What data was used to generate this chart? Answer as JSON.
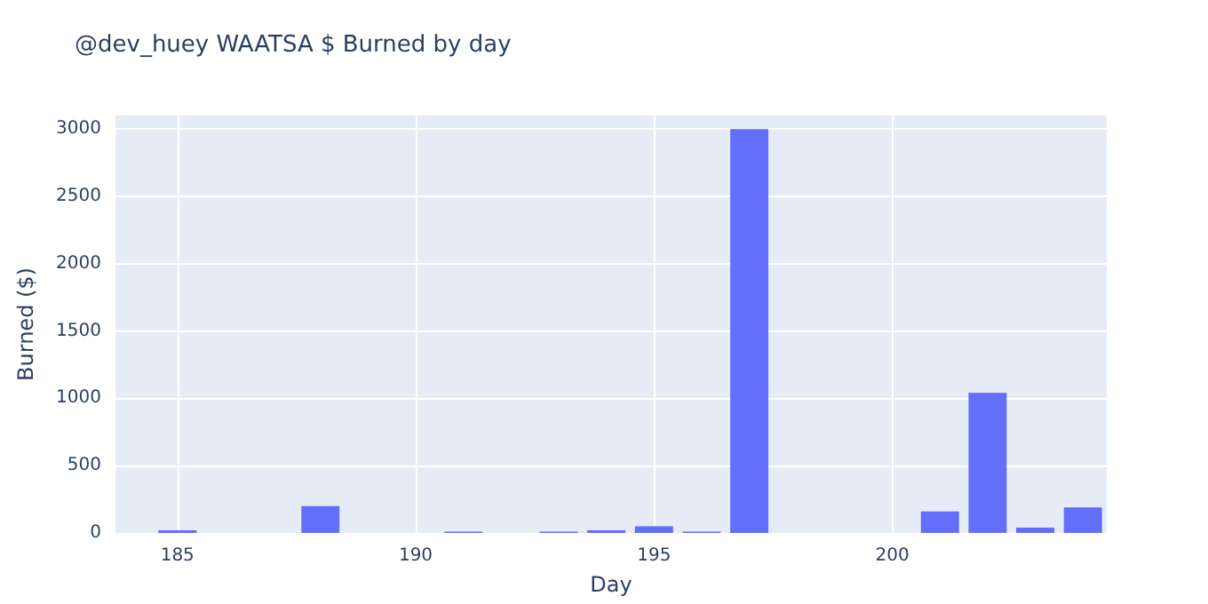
{
  "chart_data": {
    "type": "bar",
    "title": "@dev_huey WAATSA $ Burned by day",
    "xlabel": "Day",
    "ylabel": "Burned ($)",
    "x": [
      185,
      188,
      191,
      193,
      194,
      195,
      196,
      197,
      201,
      202,
      203,
      204
    ],
    "values": [
      20,
      200,
      10,
      10,
      20,
      50,
      10,
      3000,
      160,
      1040,
      40,
      190
    ],
    "color": "#636efa",
    "xlim": [
      183.7,
      204.5
    ],
    "xticks": [
      185,
      190,
      195,
      200
    ],
    "ylim": [
      0,
      3100
    ],
    "yticks": [
      0,
      500,
      1000,
      1500,
      2000,
      2500,
      3000
    ],
    "grid": true
  }
}
